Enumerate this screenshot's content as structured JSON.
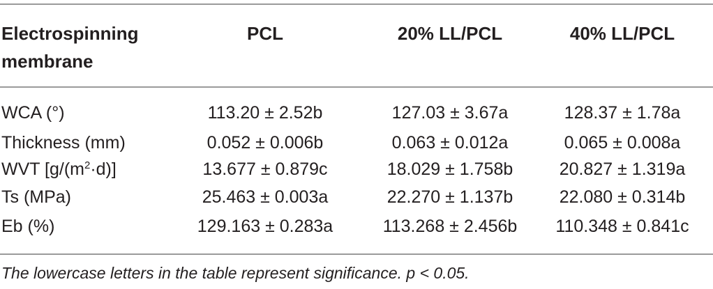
{
  "table": {
    "headers": {
      "row_label_line1": "Electrospinning",
      "row_label_line2": "membrane",
      "col1": "PCL",
      "col2": "20% LL/PCL",
      "col3": "40% LL/PCL"
    },
    "rows": [
      {
        "label": "WCA (°)",
        "col1": "113.20 ± 2.52b",
        "col2": "127.03 ± 3.67a",
        "col3": "128.37 ± 1.78a"
      },
      {
        "label": "Thickness (mm)",
        "col1": "0.052 ± 0.006b",
        "col2": "0.063 ± 0.012a",
        "col3": "0.065 ± 0.008a"
      },
      {
        "label_pre": "WVT [g/(m",
        "label_sup": "2",
        "label_post": "·d)]",
        "col1": "13.677 ± 0.879c",
        "col2": "18.029 ± 1.758b",
        "col3": "20.827 ± 1.319a"
      },
      {
        "label": "Ts (MPa)",
        "col1": "25.463 ± 0.003a",
        "col2": "22.270 ± 1.137b",
        "col3": "22.080 ± 0.314b"
      },
      {
        "label": "Eb (%)",
        "col1": "129.163 ± 0.283a",
        "col2": "113.268 ± 2.456b",
        "col3": "110.348 ± 0.841c"
      }
    ],
    "footnote": "The lowercase letters in the table represent significance. p < 0.05."
  }
}
